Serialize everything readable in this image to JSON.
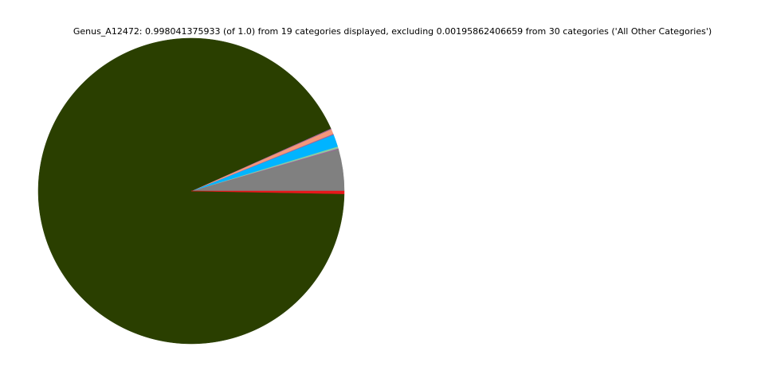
{
  "chart_data": {
    "type": "pie",
    "title": "Genus_A12472: 0.998041375933 (of 1.0) from 19 categories displayed, excluding 0.00195862406659 from 30 categories ('All Other Categories')",
    "start_angle_deg": 0,
    "direction": "counterclockwise",
    "legend": "none",
    "slices": [
      {
        "value": 0.044,
        "color": "#808080"
      },
      {
        "value": 0.001,
        "color": "#a0629a"
      },
      {
        "value": 0.002,
        "color": "#8cc9a0"
      },
      {
        "value": 0.013,
        "color": "#00b4ff"
      },
      {
        "value": 0.001,
        "color": "#a0629a"
      },
      {
        "value": 0.005,
        "color": "#f4977a"
      },
      {
        "value": 0.001,
        "color": "#a0629a"
      },
      {
        "value": 0.928,
        "color": "#2a3f00"
      },
      {
        "value": 0.003,
        "color": "#e8171b"
      }
    ]
  }
}
